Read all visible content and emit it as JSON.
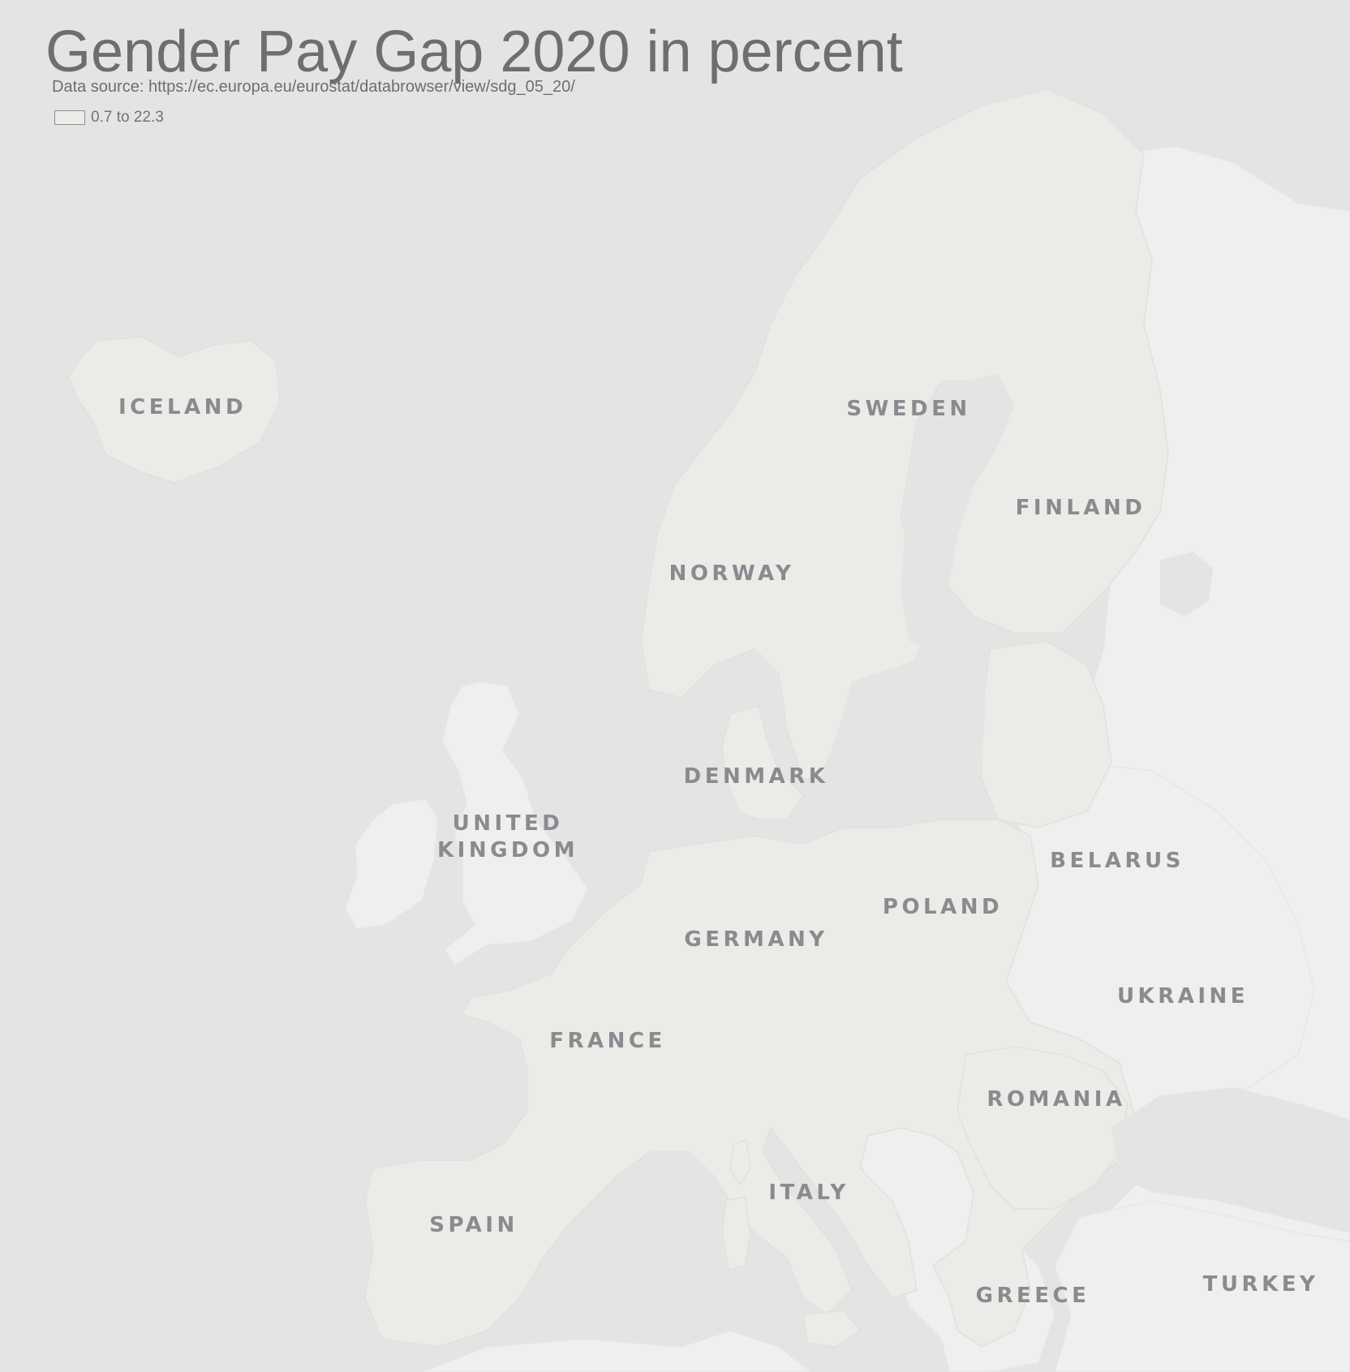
{
  "title": "Gender Pay Gap 2020 in percent",
  "subtitle": "Data source: https://ec.europa.eu/eurostat/databrowser/view/sdg_05_20/",
  "legend": {
    "items": [
      {
        "label": "0.7 to 22.3",
        "color": "#ebebe8"
      }
    ]
  },
  "colors": {
    "water": "#e4e4e4",
    "eu_land": "#ebebe8",
    "other_land": "#efefef",
    "label_text": "#8a8a8f",
    "title_text": "#6e6e6e"
  },
  "labels": {
    "iceland": "ICELAND",
    "sweden": "SWEDEN",
    "finland": "FINLAND",
    "norway": "NORWAY",
    "denmark": "DENMARK",
    "united_kingdom_1": "UNITED",
    "united_kingdom_2": "KINGDOM",
    "belarus": "BELARUS",
    "poland": "POLAND",
    "germany": "GERMANY",
    "ukraine": "UKRAINE",
    "france": "FRANCE",
    "romania": "ROMANIA",
    "italy": "ITALY",
    "spain": "SPAIN",
    "greece": "GREECE",
    "turkey": "TURKEY"
  }
}
